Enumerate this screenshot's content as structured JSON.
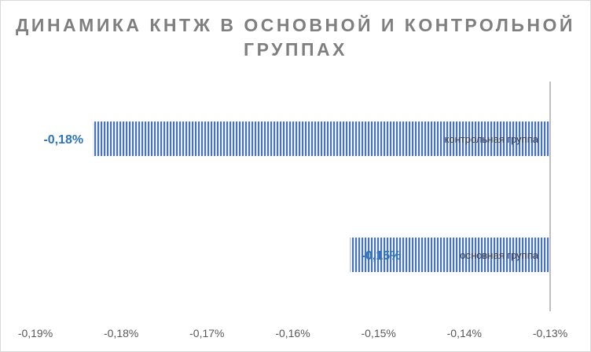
{
  "chart_data": {
    "type": "bar",
    "orientation": "horizontal",
    "title": "ДИНАМИКА КНТЖ В ОСНОВНОЙ И КОНТРОЛЬНОЙ ГРУППАХ",
    "categories": [
      "контрольная группа",
      "основная группа"
    ],
    "values": [
      -0.1833,
      -0.1533
    ],
    "data_labels": [
      "-0,18%",
      "-0,15%"
    ],
    "xlim": [
      -0.19,
      -0.13
    ],
    "xticks": [
      -0.19,
      -0.18,
      -0.17,
      -0.16,
      -0.15,
      -0.14,
      -0.13
    ],
    "xtick_labels": [
      "-0,19%",
      "-0,18%",
      "-0,17%",
      "-0,16%",
      "-0,15%",
      "-0,14%",
      "-0,13%"
    ],
    "grid": false,
    "legend": "none",
    "bar_color": "#4472c4",
    "bar_pattern": "vertical-lines",
    "axis_color": "#bfbfbf"
  }
}
